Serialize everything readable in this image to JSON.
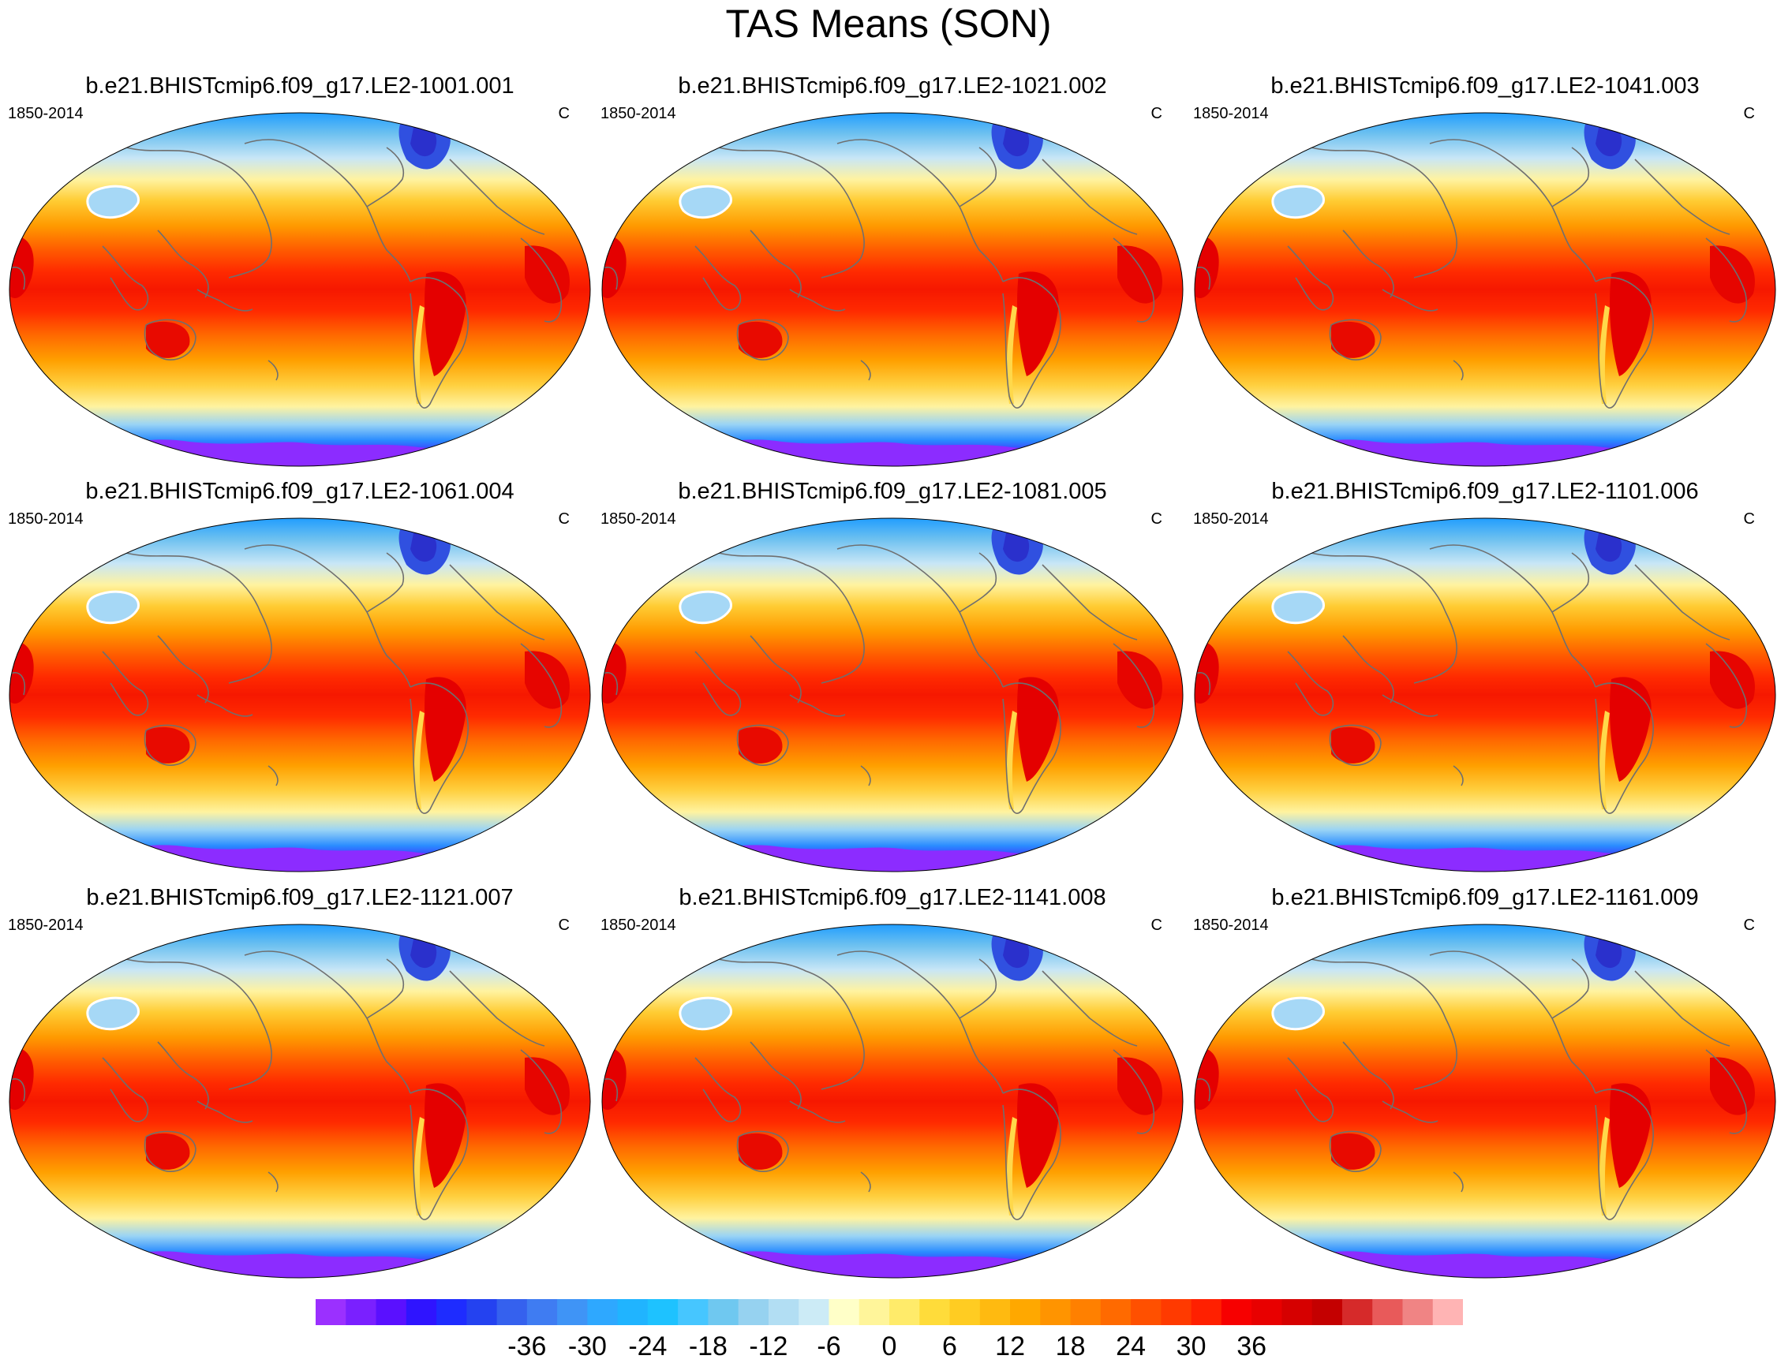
{
  "title": "TAS Means (SON)",
  "panels": [
    {
      "title": "b.e21.BHISTcmip6.f09_g17.LE2-1001.001",
      "period": "1850-2014",
      "units": "C"
    },
    {
      "title": "b.e21.BHISTcmip6.f09_g17.LE2-1021.002",
      "period": "1850-2014",
      "units": "C"
    },
    {
      "title": "b.e21.BHISTcmip6.f09_g17.LE2-1041.003",
      "period": "1850-2014",
      "units": "C"
    },
    {
      "title": "b.e21.BHISTcmip6.f09_g17.LE2-1061.004",
      "period": "1850-2014",
      "units": "C"
    },
    {
      "title": "b.e21.BHISTcmip6.f09_g17.LE2-1081.005",
      "period": "1850-2014",
      "units": "C"
    },
    {
      "title": "b.e21.BHISTcmip6.f09_g17.LE2-1101.006",
      "period": "1850-2014",
      "units": "C"
    },
    {
      "title": "b.e21.BHISTcmip6.f09_g17.LE2-1121.007",
      "period": "1850-2014",
      "units": "C"
    },
    {
      "title": "b.e21.BHISTcmip6.f09_g17.LE2-1141.008",
      "period": "1850-2014",
      "units": "C"
    },
    {
      "title": "b.e21.BHISTcmip6.f09_g17.LE2-1161.009",
      "period": "1850-2014",
      "units": "C"
    }
  ],
  "colorbar": {
    "labels": [
      "-36",
      "-30",
      "-24",
      "-18",
      "-12",
      "-6",
      "0",
      "6",
      "12",
      "18",
      "24",
      "30",
      "36"
    ],
    "colors": [
      "#9b30ff",
      "#7a20ff",
      "#5a10ff",
      "#2f14ff",
      "#1e2cff",
      "#2442f0",
      "#3561ee",
      "#3f7cf2",
      "#3f94f6",
      "#2ea8ff",
      "#20b4ff",
      "#1ec2ff",
      "#46c6ff",
      "#6fc8f0",
      "#96d2f0",
      "#b2def3",
      "#ccebf6",
      "#ffffc8",
      "#fff59a",
      "#ffeb6a",
      "#ffdc3a",
      "#ffcc22",
      "#ffba10",
      "#ffa800",
      "#ff9400",
      "#ff8000",
      "#ff6a00",
      "#ff5000",
      "#ff3a00",
      "#ff2000",
      "#f70000",
      "#e80000",
      "#d60000",
      "#c40000",
      "#d62a2a",
      "#e85a5a",
      "#f08484",
      "#ffb4b4"
    ]
  }
}
